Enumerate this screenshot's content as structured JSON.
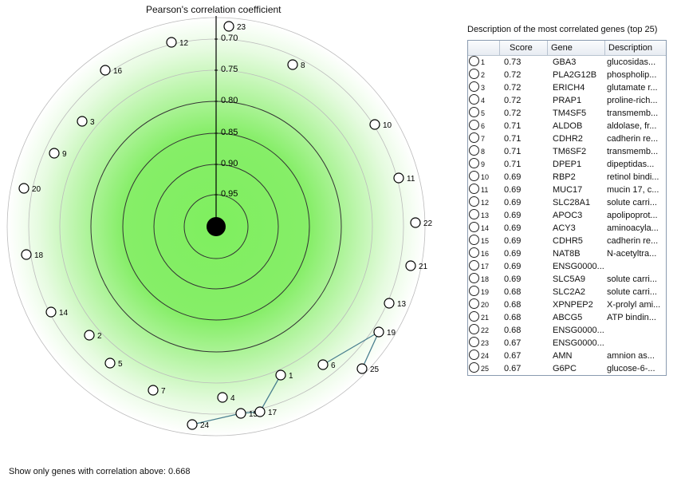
{
  "chart_title": "Pearson's correlation coefficient",
  "axis_ticks": [
    "0.70",
    "0.75",
    "0.80",
    "0.85",
    "0.90",
    "0.95"
  ],
  "footer": "Show only genes with correlation above: 0.668",
  "colors": {
    "green": "#7fef5f",
    "ring": "#333333",
    "edge": "#4a7f8f"
  },
  "nodes": [
    "1",
    "2",
    "3",
    "4",
    "5",
    "6",
    "7",
    "8",
    "9",
    "10",
    "11",
    "12",
    "13",
    "14",
    "15",
    "16",
    "17",
    "18",
    "19",
    "20",
    "21",
    "22",
    "23",
    "24",
    "25"
  ],
  "edges": [
    [
      "24",
      "15"
    ],
    [
      "15",
      "17"
    ],
    [
      "17",
      "1"
    ],
    [
      "6",
      "19"
    ],
    [
      "19",
      "25"
    ]
  ],
  "table": {
    "title": "Description of the most correlated genes (top 25)",
    "headers": [
      "",
      "Score",
      "Gene",
      "Description"
    ],
    "rows": [
      [
        "1",
        "0.73",
        "GBA3",
        "glucosidas..."
      ],
      [
        "2",
        "0.72",
        "PLA2G12B",
        "phospholip..."
      ],
      [
        "3",
        "0.72",
        "ERICH4",
        "glutamate r..."
      ],
      [
        "4",
        "0.72",
        "PRAP1",
        "proline-rich..."
      ],
      [
        "5",
        "0.72",
        "TM4SF5",
        "transmemb..."
      ],
      [
        "6",
        "0.71",
        "ALDOB",
        "aldolase, fr..."
      ],
      [
        "7",
        "0.71",
        "CDHR2",
        "cadherin re..."
      ],
      [
        "8",
        "0.71",
        "TM6SF2",
        "transmemb..."
      ],
      [
        "9",
        "0.71",
        "DPEP1",
        "dipeptidas..."
      ],
      [
        "10",
        "0.69",
        "RBP2",
        "retinol bindi..."
      ],
      [
        "11",
        "0.69",
        "MUC17",
        "mucin 17, c..."
      ],
      [
        "12",
        "0.69",
        "SLC28A1",
        "solute carri..."
      ],
      [
        "13",
        "0.69",
        "APOC3",
        "apolipoprot..."
      ],
      [
        "14",
        "0.69",
        "ACY3",
        "aminoacyla..."
      ],
      [
        "15",
        "0.69",
        "CDHR5",
        "cadherin re..."
      ],
      [
        "16",
        "0.69",
        "NAT8B",
        "N-acetyltra..."
      ],
      [
        "17",
        "0.69",
        "ENSG0000...",
        ""
      ],
      [
        "18",
        "0.69",
        "SLC5A9",
        "solute carri..."
      ],
      [
        "19",
        "0.68",
        "SLC2A2",
        "solute carri..."
      ],
      [
        "20",
        "0.68",
        "XPNPEP2",
        "X-prolyl ami..."
      ],
      [
        "21",
        "0.68",
        "ABCG5",
        "ATP bindin..."
      ],
      [
        "22",
        "0.68",
        "ENSG0000...",
        ""
      ],
      [
        "23",
        "0.67",
        "ENSG0000...",
        ""
      ],
      [
        "24",
        "0.67",
        "AMN",
        "amnion as..."
      ],
      [
        "25",
        "0.67",
        "G6PC",
        "glucose-6-..."
      ]
    ]
  }
}
